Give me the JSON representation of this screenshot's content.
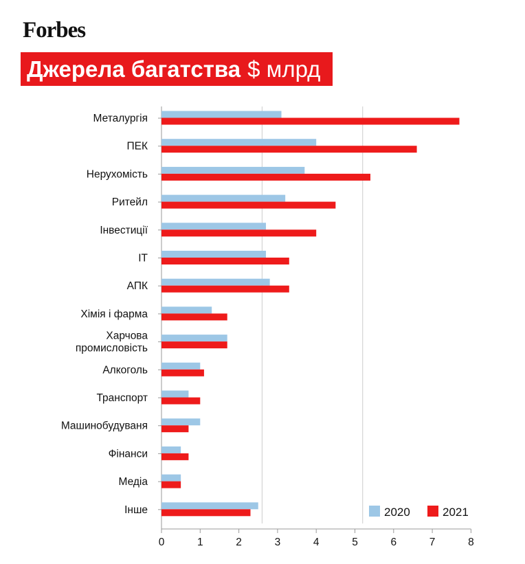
{
  "header": {
    "logo": "Forbes",
    "title_main": "Джерела багатства",
    "title_unit": "$ млрд"
  },
  "colors": {
    "accent": "#e8191c",
    "series_2020": "#9dc7e6",
    "series_2021": "#ee1b1b"
  },
  "chart_data": {
    "type": "bar",
    "orientation": "horizontal",
    "title": "Джерела багатства $ млрд",
    "xlim": [
      0,
      8
    ],
    "x_ticks": [
      "0",
      "1",
      "2",
      "3",
      "4",
      "5",
      "6",
      "7",
      "8"
    ],
    "gridlines_at": [
      2.6,
      5.2
    ],
    "legend_position": "bottom-right",
    "categories": [
      [
        "Металургія"
      ],
      [
        "ПЕК"
      ],
      [
        "Нерухомість"
      ],
      [
        "Ритейл"
      ],
      [
        "Інвестиції"
      ],
      [
        "ІТ"
      ],
      [
        "АПК"
      ],
      [
        "Хімія і фарма"
      ],
      [
        "Харчова",
        "промисловість"
      ],
      [
        "Алкоголь"
      ],
      [
        "Транспорт"
      ],
      [
        "Машинобудуваня"
      ],
      [
        "Фінанси"
      ],
      [
        "Медіа"
      ],
      [
        "Інше"
      ]
    ],
    "series": [
      {
        "name": "2020",
        "color": "#9dc7e6",
        "values": [
          3.1,
          4.0,
          3.7,
          3.2,
          2.7,
          2.7,
          2.8,
          1.3,
          1.7,
          1.0,
          0.7,
          1.0,
          0.5,
          0.5,
          2.5
        ]
      },
      {
        "name": "2021",
        "color": "#ee1b1b",
        "values": [
          7.7,
          6.6,
          5.4,
          4.5,
          4.0,
          3.3,
          3.3,
          1.7,
          1.7,
          1.1,
          1.0,
          0.7,
          0.7,
          0.5,
          2.3
        ]
      }
    ]
  }
}
